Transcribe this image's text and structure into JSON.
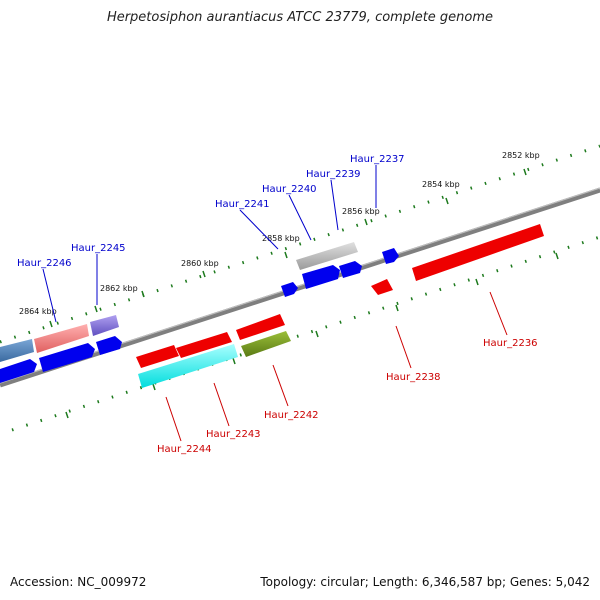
{
  "title": "Herpetosiphon aurantiacus ATCC 23779, complete genome",
  "footer": {
    "accession": "Accession: NC_009972",
    "info": "Topology: circular; Length: 6,346,587 bp; Genes: 5,042"
  },
  "colors": {
    "backbone": "#7f7f7f",
    "tick": "#1d7a1d",
    "forward_label": "#0000cc",
    "reverse_label": "#cc0000"
  },
  "scale_labels": [
    "2852 kbp",
    "2854 kbp",
    "2856 kbp",
    "2858 kbp",
    "2860 kbp",
    "2862 kbp",
    "2864 kbp"
  ],
  "genes": [
    {
      "id": "Haur_2237",
      "strand": "forward",
      "color": "#0000ee"
    },
    {
      "id": "Haur_2239",
      "strand": "forward",
      "color": "#0000ee"
    },
    {
      "id": "Haur_2240",
      "strand": "forward",
      "color": "#0000ee"
    },
    {
      "id": "Haur_2241",
      "strand": "forward",
      "color": "#0000ee"
    },
    {
      "id": "Haur_2245",
      "strand": "forward",
      "color": "#0000ee"
    },
    {
      "id": "Haur_2246",
      "strand": "forward",
      "color": "#0000ee"
    },
    {
      "id": "Haur_2236",
      "strand": "reverse",
      "color": "#ee0000"
    },
    {
      "id": "Haur_2238",
      "strand": "reverse",
      "color": "#ee0000"
    },
    {
      "id": "Haur_2242",
      "strand": "reverse",
      "color": "#ee0000"
    },
    {
      "id": "Haur_2243",
      "strand": "reverse",
      "color": "#ee0000"
    },
    {
      "id": "Haur_2244",
      "strand": "reverse",
      "color": "#ee0000"
    }
  ]
}
